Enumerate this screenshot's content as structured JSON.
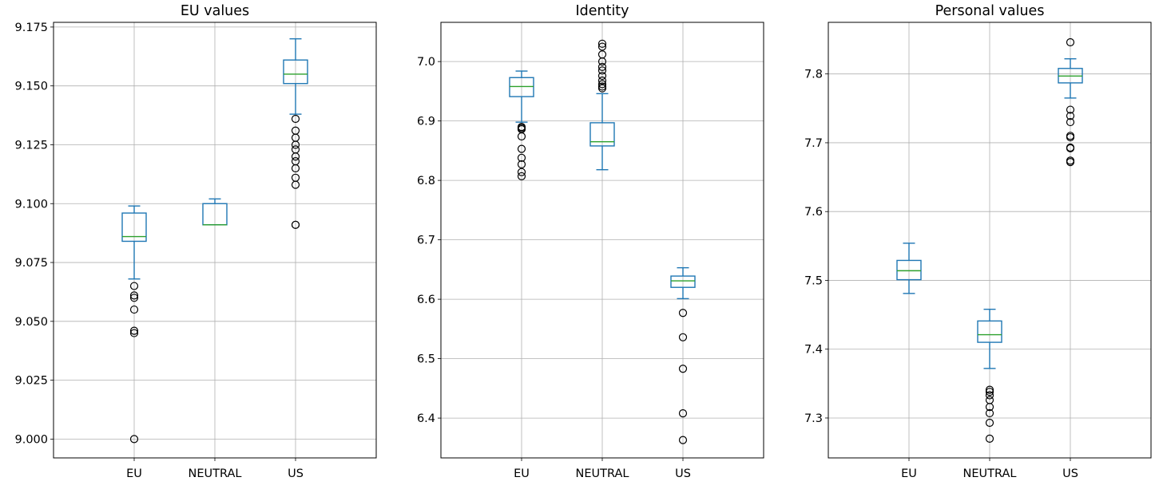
{
  "colors": {
    "box": "#1f77b4",
    "median": "#2ca02c",
    "flier": "#000000",
    "grid": "#b0b0b0"
  },
  "chart_data": [
    {
      "type": "box",
      "title": "EU values",
      "categories": [
        "EU",
        "NEUTRAL",
        "US"
      ],
      "ylim": [
        8.992,
        9.177
      ],
      "yticks": [
        9.0,
        9.025,
        9.05,
        9.075,
        9.1,
        9.125,
        9.15,
        9.175
      ],
      "ytick_labels": [
        "9.000",
        "9.025",
        "9.050",
        "9.075",
        "9.100",
        "9.125",
        "9.150",
        "9.175"
      ],
      "grid": true,
      "boxes": [
        {
          "name": "EU",
          "whisker_low": 9.068,
          "q1": 9.084,
          "median": 9.086,
          "q3": 9.096,
          "whisker_high": 9.099,
          "fliers": [
            9.065,
            9.061,
            9.06,
            9.055,
            9.046,
            9.045,
            9.0
          ]
        },
        {
          "name": "NEUTRAL",
          "whisker_low": 9.091,
          "q1": 9.091,
          "median": 9.091,
          "q3": 9.1,
          "whisker_high": 9.102,
          "fliers": []
        },
        {
          "name": "US",
          "whisker_low": 9.138,
          "q1": 9.151,
          "median": 9.155,
          "q3": 9.161,
          "whisker_high": 9.17,
          "fliers": [
            9.136,
            9.131,
            9.128,
            9.125,
            9.123,
            9.12,
            9.118,
            9.115,
            9.111,
            9.108,
            9.091,
            9.091
          ]
        }
      ]
    },
    {
      "type": "box",
      "title": "Identity",
      "categories": [
        "EU",
        "NEUTRAL",
        "US"
      ],
      "ylim": [
        6.333,
        7.066
      ],
      "yticks": [
        6.4,
        6.5,
        6.6,
        6.7,
        6.8,
        6.9,
        7.0
      ],
      "ytick_labels": [
        "6.4",
        "6.5",
        "6.6",
        "6.7",
        "6.8",
        "6.9",
        "7.0"
      ],
      "grid": true,
      "boxes": [
        {
          "name": "EU",
          "whisker_low": 6.898,
          "q1": 6.941,
          "median": 6.958,
          "q3": 6.973,
          "whisker_high": 6.984,
          "fliers": [
            6.89,
            6.888,
            6.886,
            6.874,
            6.853,
            6.838,
            6.827,
            6.814,
            6.807
          ]
        },
        {
          "name": "NEUTRAL",
          "whisker_low": 6.818,
          "q1": 6.858,
          "median": 6.865,
          "q3": 6.897,
          "whisker_high": 6.946,
          "fliers": [
            7.03,
            7.025,
            7.012,
            7.0,
            6.991,
            6.985,
            6.976,
            6.968,
            6.962,
            6.958,
            6.955
          ]
        },
        {
          "name": "US",
          "whisker_low": 6.601,
          "q1": 6.62,
          "median": 6.631,
          "q3": 6.639,
          "whisker_high": 6.653,
          "fliers": [
            6.577,
            6.536,
            6.483,
            6.408,
            6.363
          ]
        }
      ]
    },
    {
      "type": "box",
      "title": "Personal values",
      "categories": [
        "EU",
        "NEUTRAL",
        "US"
      ],
      "ylim": [
        7.242,
        7.875
      ],
      "yticks": [
        7.3,
        7.4,
        7.5,
        7.6,
        7.7,
        7.8
      ],
      "ytick_labels": [
        "7.3",
        "7.4",
        "7.5",
        "7.6",
        "7.7",
        "7.8"
      ],
      "grid": true,
      "boxes": [
        {
          "name": "EU",
          "whisker_low": 7.481,
          "q1": 7.501,
          "median": 7.514,
          "q3": 7.529,
          "whisker_high": 7.554,
          "fliers": []
        },
        {
          "name": "NEUTRAL",
          "whisker_low": 7.372,
          "q1": 7.41,
          "median": 7.421,
          "q3": 7.441,
          "whisker_high": 7.458,
          "fliers": [
            7.341,
            7.338,
            7.333,
            7.326,
            7.316,
            7.307,
            7.293,
            7.27
          ]
        },
        {
          "name": "US",
          "whisker_low": 7.765,
          "q1": 7.787,
          "median": 7.797,
          "q3": 7.808,
          "whisker_high": 7.822,
          "fliers": [
            7.846,
            7.748,
            7.739,
            7.73,
            7.71,
            7.708,
            7.693,
            7.692,
            7.674,
            7.672
          ]
        }
      ]
    }
  ]
}
